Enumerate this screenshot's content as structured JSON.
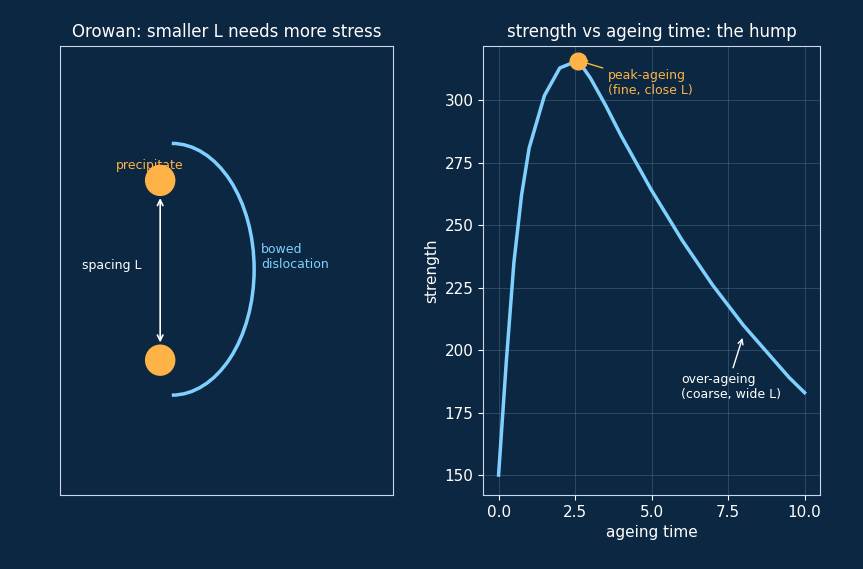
{
  "diagram": {
    "title": "Orowan: smaller L needs more stress",
    "labels": {
      "precipitate": "precipitate",
      "spacing": "spacing L",
      "dislocation": "bowed\ndislocation"
    }
  },
  "chart_data": {
    "type": "line",
    "title": "strength vs ageing time: the hump",
    "x_label": "ageing time",
    "y_label": "strength",
    "x": [
      0,
      0.25,
      0.5,
      0.75,
      1.0,
      1.5,
      2.0,
      2.6,
      3.0,
      3.5,
      4.0,
      4.5,
      5.0,
      5.5,
      6.0,
      6.5,
      7.0,
      7.5,
      8.0,
      8.5,
      9.0,
      9.5,
      10.0
    ],
    "values": [
      150,
      195,
      235,
      262,
      281,
      302,
      313,
      316,
      309,
      298,
      286,
      275,
      264,
      254,
      244,
      235,
      226,
      218,
      210,
      203,
      196,
      189,
      183
    ],
    "color": "#7fd0ff",
    "xlim": [
      -0.5,
      10.5
    ],
    "ylim": [
      142,
      322
    ],
    "xticks": [
      {
        "value": 0,
        "label": "0.0"
      },
      {
        "value": 2.5,
        "label": "2.5"
      },
      {
        "value": 5,
        "label": "5.0"
      },
      {
        "value": 7.5,
        "label": "7.5"
      },
      {
        "value": 10,
        "label": "10.0"
      }
    ],
    "yticks": [
      150,
      175,
      200,
      225,
      250,
      275,
      300
    ],
    "grid": true,
    "peak": {
      "x": 2.6,
      "y": 316,
      "label": "peak-ageing\n(fine, close L)"
    },
    "annotations": [
      {
        "text": "over-ageing\n(coarse, wide L)",
        "x": 8,
        "y": 206
      }
    ]
  }
}
